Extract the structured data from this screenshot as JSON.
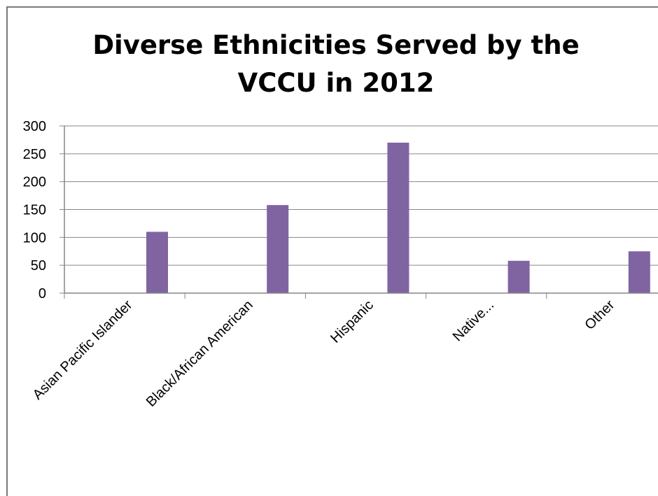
{
  "chart_data": {
    "type": "bar",
    "title_lines": [
      "Diverse Ethnicities Served by the",
      "VCCU in 2012"
    ],
    "categories": [
      "Asian Pacific Islander",
      "Black/African American",
      "Hispanic",
      "Native...",
      "Other"
    ],
    "series": [
      {
        "values": [
          110,
          158,
          270,
          58,
          75
        ]
      }
    ],
    "ylim": [
      0,
      300
    ],
    "yticks": [
      0,
      50,
      100,
      150,
      200,
      250,
      300
    ],
    "grid": true,
    "legend": "none",
    "colors": {
      "bar": "#8064a2",
      "grid": "#868686",
      "text": "#000000"
    }
  }
}
